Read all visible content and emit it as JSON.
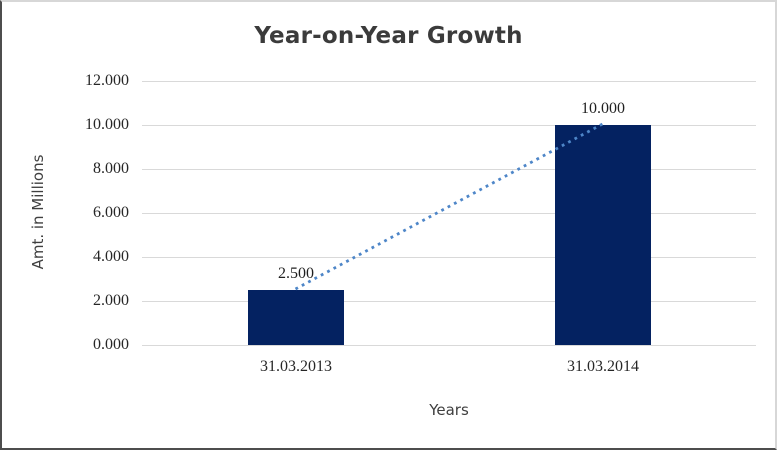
{
  "chart_data": {
    "type": "bar",
    "title": "Year-on-Year Growth",
    "categories": [
      "31.03.2013",
      "31.03.2014"
    ],
    "series": [
      {
        "name": "Amt. in Millions",
        "values": [
          2.5,
          10.0
        ]
      }
    ],
    "data_labels": [
      "2.500",
      "10.000"
    ],
    "yticks": [
      "12.000",
      "10.000",
      "8.000",
      "6.000",
      "4.000",
      "2.000",
      "0.000"
    ],
    "ylim": [
      0,
      12
    ],
    "ytick_step": 2,
    "xlabel": "Years",
    "ylabel": "Amt. in Millions",
    "grid": "horizontal-gridlines",
    "legend": "none",
    "trendline": {
      "type": "linear",
      "style": "dotted",
      "connects_values": [
        2.5,
        10.0
      ]
    },
    "colors": {
      "bar": "#042261",
      "trendline": "#4E86C8",
      "gridline": "#D9D9D9",
      "title_text": "#3B3B3B",
      "axis_title_text": "#3F3F3F",
      "tick_text": "#262626"
    }
  }
}
